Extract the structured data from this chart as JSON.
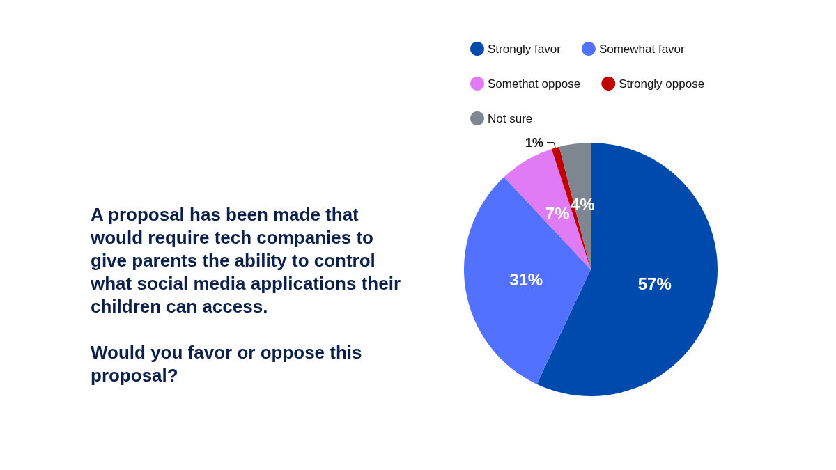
{
  "chart_data": {
    "type": "pie",
    "title": "A proposal has been made that would require tech companies to give parents the ability to control what social media applications their children can access.\n\nWould you favor or oppose this proposal?",
    "categories": [
      "Strongly favor",
      "Somewhat favor",
      "Somethat oppose",
      "Strongly oppose",
      "Not sure"
    ],
    "values": [
      57,
      31,
      7,
      1,
      4
    ],
    "colors": [
      "#004aad",
      "#5271ff",
      "#e07bf5",
      "#c00000",
      "#7e8691"
    ],
    "value_labels": [
      "57%",
      "31%",
      "7%",
      "1%",
      "4%"
    ],
    "legend": "top"
  }
}
